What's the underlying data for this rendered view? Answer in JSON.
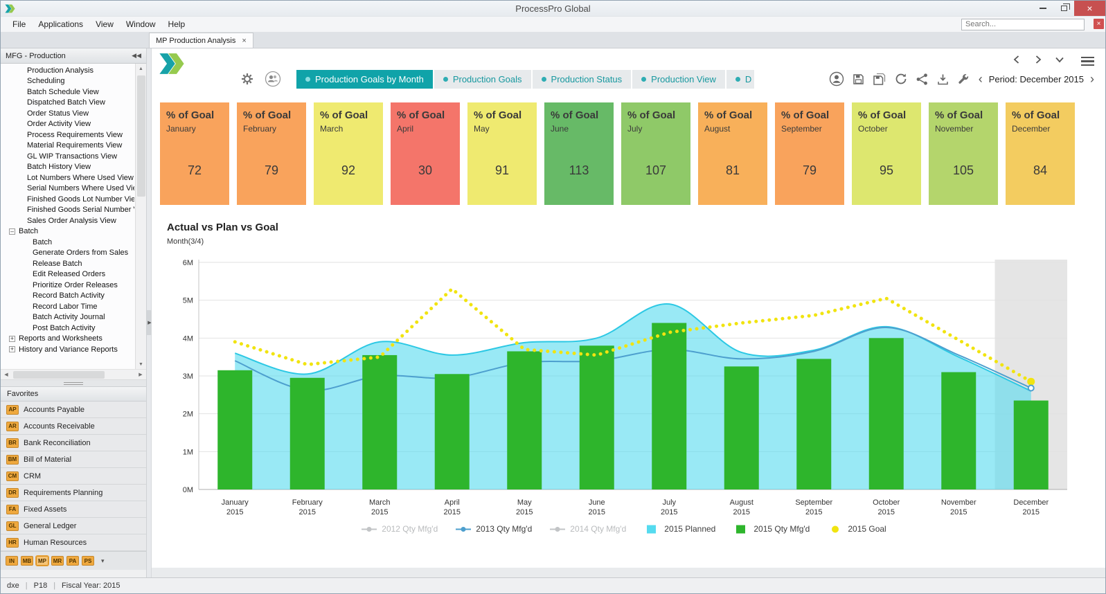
{
  "window": {
    "title": "ProcessPro Global",
    "search_placeholder": "Search..."
  },
  "menubar": {
    "items": [
      "File",
      "Applications",
      "View",
      "Window",
      "Help"
    ]
  },
  "document_tabs": [
    {
      "label": "MP Production Analysis",
      "active": true
    }
  ],
  "sidebar": {
    "header": "MFG - Production",
    "tree": [
      {
        "label": "Production Analysis",
        "level": 1
      },
      {
        "label": "Scheduling",
        "level": 1
      },
      {
        "label": "Batch Schedule View",
        "level": 1
      },
      {
        "label": "Dispatched Batch View",
        "level": 1
      },
      {
        "label": "Order Status View",
        "level": 1
      },
      {
        "label": "Order Activity View",
        "level": 1
      },
      {
        "label": "Process Requirements View",
        "level": 1
      },
      {
        "label": "Material Requirements View",
        "level": 1
      },
      {
        "label": "GL WIP Transactions View",
        "level": 1
      },
      {
        "label": "Batch History View",
        "level": 1
      },
      {
        "label": "Lot Numbers Where Used View",
        "level": 1
      },
      {
        "label": "Serial Numbers Where Used Vie",
        "level": 1
      },
      {
        "label": "Finished Goods Lot Number Vie",
        "level": 1
      },
      {
        "label": "Finished Goods Serial Number V",
        "level": 1
      },
      {
        "label": "Sales Order Analysis View",
        "level": 1
      },
      {
        "label": "Batch",
        "level": 0,
        "expander": "minus"
      },
      {
        "label": "Batch",
        "level": 2
      },
      {
        "label": "Generate Orders from Sales",
        "level": 2
      },
      {
        "label": "Release Batch",
        "level": 2
      },
      {
        "label": "Edit Released Orders",
        "level": 2
      },
      {
        "label": "Prioritize Order Releases",
        "level": 2
      },
      {
        "label": "Record Batch Activity",
        "level": 2
      },
      {
        "label": "Record Labor Time",
        "level": 2
      },
      {
        "label": "Batch Activity Journal",
        "level": 2
      },
      {
        "label": "Post Batch Activity",
        "level": 2
      },
      {
        "label": "Reports and Worksheets",
        "level": 0,
        "expander": "plus"
      },
      {
        "label": "History and Variance Reports",
        "level": 0,
        "expander": "plus"
      }
    ],
    "favorites_header": "Favorites",
    "favorites": [
      {
        "code": "AP",
        "label": "Accounts Payable"
      },
      {
        "code": "AR",
        "label": "Accounts Receivable"
      },
      {
        "code": "BR",
        "label": "Bank Reconciliation"
      },
      {
        "code": "BM",
        "label": "Bill of Material"
      },
      {
        "code": "CM",
        "label": "CRM"
      },
      {
        "code": "DR",
        "label": "Requirements Planning"
      },
      {
        "code": "FA",
        "label": "Fixed Assets"
      },
      {
        "code": "GL",
        "label": "General Ledger"
      },
      {
        "code": "HR",
        "label": "Human Resources"
      }
    ],
    "quickbar": [
      {
        "code": "IN"
      },
      {
        "code": "MB"
      },
      {
        "code": "MP",
        "active": true
      },
      {
        "code": "MR"
      },
      {
        "code": "PA"
      },
      {
        "code": "PS"
      }
    ]
  },
  "statusbar": {
    "items": [
      "dxe",
      "P18",
      "Fiscal Year: 2015"
    ]
  },
  "dashboard": {
    "accent_color": "#10A3A9",
    "tabs": [
      {
        "label": "Production Goals by Month",
        "active": true
      },
      {
        "label": "Production Goals"
      },
      {
        "label": "Production Status"
      },
      {
        "label": "Production View"
      },
      {
        "label": "D",
        "truncated": true
      }
    ],
    "period": {
      "label": "Period: December 2015"
    },
    "kpi_title": "% of Goal",
    "kpis": [
      {
        "month": "January",
        "value": "72",
        "color": "#F9A35C"
      },
      {
        "month": "February",
        "value": "79",
        "color": "#F9A35C"
      },
      {
        "month": "March",
        "value": "92",
        "color": "#EFEA70"
      },
      {
        "month": "April",
        "value": "30",
        "color": "#F4756A"
      },
      {
        "month": "May",
        "value": "91",
        "color": "#EFEA70"
      },
      {
        "month": "June",
        "value": "113",
        "color": "#67BA67"
      },
      {
        "month": "July",
        "value": "107",
        "color": "#8FC968"
      },
      {
        "month": "August",
        "value": "81",
        "color": "#F8B05A"
      },
      {
        "month": "September",
        "value": "79",
        "color": "#F9A35C"
      },
      {
        "month": "October",
        "value": "95",
        "color": "#DDE76F"
      },
      {
        "month": "November",
        "value": "105",
        "color": "#B4D56C"
      },
      {
        "month": "December",
        "value": "84",
        "color": "#F3CC60"
      }
    ]
  },
  "chart_data": {
    "type": "combo",
    "title": "Actual vs Plan vs Goal",
    "subtitle": "Month(3/4)",
    "categories": [
      "January",
      "February",
      "March",
      "April",
      "May",
      "June",
      "July",
      "August",
      "September",
      "October",
      "November",
      "December"
    ],
    "category_year": "2015",
    "ylim": [
      0,
      6000000
    ],
    "yticks": [
      0,
      1000000,
      2000000,
      3000000,
      4000000,
      5000000,
      6000000
    ],
    "ytick_labels": [
      "0M",
      "1M",
      "2M",
      "3M",
      "4M",
      "5M",
      "6M"
    ],
    "grid": true,
    "legend_position": "bottom",
    "highlight_category_index": 11,
    "series": [
      {
        "name": "2012 Qty Mfg'd",
        "type": "line",
        "enabled": false,
        "color": "#B9BCBE",
        "values": []
      },
      {
        "name": "2013 Qty Mfg'd",
        "type": "line",
        "enabled": true,
        "color": "#4D9FCE",
        "values": [
          3400000,
          2620000,
          3000000,
          2950000,
          3350000,
          3400000,
          3700000,
          3450000,
          3650000,
          4280000,
          3550000,
          2680000
        ]
      },
      {
        "name": "2014 Qty Mfg'd",
        "type": "line",
        "enabled": false,
        "color": "#B9BCBE",
        "values": []
      },
      {
        "name": "2015 Planned",
        "type": "area",
        "enabled": true,
        "color": "#55DBEF",
        "values": [
          3600000,
          3050000,
          3900000,
          3550000,
          3880000,
          4000000,
          4900000,
          3620000,
          3680000,
          4300000,
          3500000,
          2600000
        ]
      },
      {
        "name": "2015 Qty Mfg'd",
        "type": "bar",
        "enabled": true,
        "color": "#2EB52C",
        "values": [
          3150000,
          2950000,
          3550000,
          3050000,
          3650000,
          3800000,
          4400000,
          3250000,
          3450000,
          4000000,
          3100000,
          2350000
        ]
      },
      {
        "name": "2015 Goal",
        "type": "dotted_line",
        "enabled": true,
        "color": "#F1E410",
        "values": [
          3900000,
          3300000,
          3500000,
          5300000,
          3700000,
          3550000,
          4150000,
          4400000,
          4600000,
          5050000,
          3950000,
          2850000
        ]
      }
    ]
  }
}
